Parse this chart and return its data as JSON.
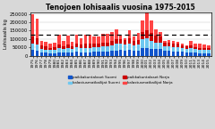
{
  "title": "Tenojoen lohisaalis vuosina 1975-2015",
  "ylabel": "Lohisaalis kg",
  "years": [
    1975,
    1976,
    1977,
    1978,
    1979,
    1980,
    1981,
    1982,
    1983,
    1984,
    1985,
    1986,
    1987,
    1988,
    1989,
    1990,
    1991,
    1992,
    1993,
    1994,
    1995,
    1996,
    1997,
    1998,
    1999,
    2000,
    2001,
    2002,
    2003,
    2004,
    2005,
    2006,
    2007,
    2008,
    2009,
    2010,
    2011,
    2012,
    2013,
    2014,
    2015
  ],
  "paikkak_suomi": [
    35000,
    32000,
    20000,
    18000,
    15000,
    15000,
    20000,
    18000,
    20000,
    18000,
    22000,
    20000,
    20000,
    20000,
    22000,
    22000,
    25000,
    25000,
    28000,
    32000,
    35000,
    32000,
    35000,
    30000,
    32000,
    45000,
    45000,
    42000,
    38000,
    38000,
    28000,
    28000,
    25000,
    25000,
    22000,
    20000,
    20000,
    18000,
    16000,
    16000,
    16000
  ],
  "kalastusm_suomi": [
    38000,
    35000,
    22000,
    18000,
    18000,
    18000,
    25000,
    20000,
    25000,
    20000,
    28000,
    25000,
    28000,
    28000,
    30000,
    30000,
    32000,
    32000,
    35000,
    38000,
    38000,
    35000,
    38000,
    32000,
    35000,
    55000,
    58000,
    48000,
    42000,
    42000,
    30000,
    30000,
    28000,
    28000,
    25000,
    22000,
    25000,
    22000,
    20000,
    20000,
    18000
  ],
  "paikkak_norja": [
    40000,
    38000,
    18000,
    18000,
    15000,
    18000,
    22000,
    18000,
    20000,
    18000,
    22000,
    20000,
    22000,
    22000,
    22000,
    20000,
    22000,
    22000,
    25000,
    28000,
    28000,
    25000,
    30000,
    25000,
    28000,
    40000,
    52000,
    45000,
    38000,
    35000,
    20000,
    22000,
    18000,
    20000,
    15000,
    14000,
    15000,
    12000,
    12000,
    10000,
    10000
  ],
  "kalastusm_norja": [
    135000,
    115000,
    28000,
    30000,
    22000,
    28000,
    60000,
    30000,
    55000,
    28000,
    55000,
    40000,
    55000,
    58000,
    40000,
    42000,
    50000,
    50000,
    55000,
    60000,
    18000,
    15000,
    48000,
    30000,
    42000,
    70000,
    110000,
    75000,
    42000,
    25000,
    12000,
    15000,
    20000,
    10000,
    8000,
    6000,
    28000,
    18000,
    25000,
    20000,
    18000
  ],
  "mean_line": 125000,
  "color_paikkak_suomi": "#1155cc",
  "color_kalastusm_suomi": "#6fc8f0",
  "color_paikkak_norja": "#cc0000",
  "color_kalastusm_norja": "#ff4444",
  "ylim": [
    0,
    260000
  ],
  "yticks": [
    0,
    50000,
    100000,
    150000,
    200000,
    250000
  ],
  "ytick_labels": [
    "0",
    "50000",
    "100000",
    "150000",
    "200000",
    "250000"
  ],
  "background_color": "#d8d8d8"
}
